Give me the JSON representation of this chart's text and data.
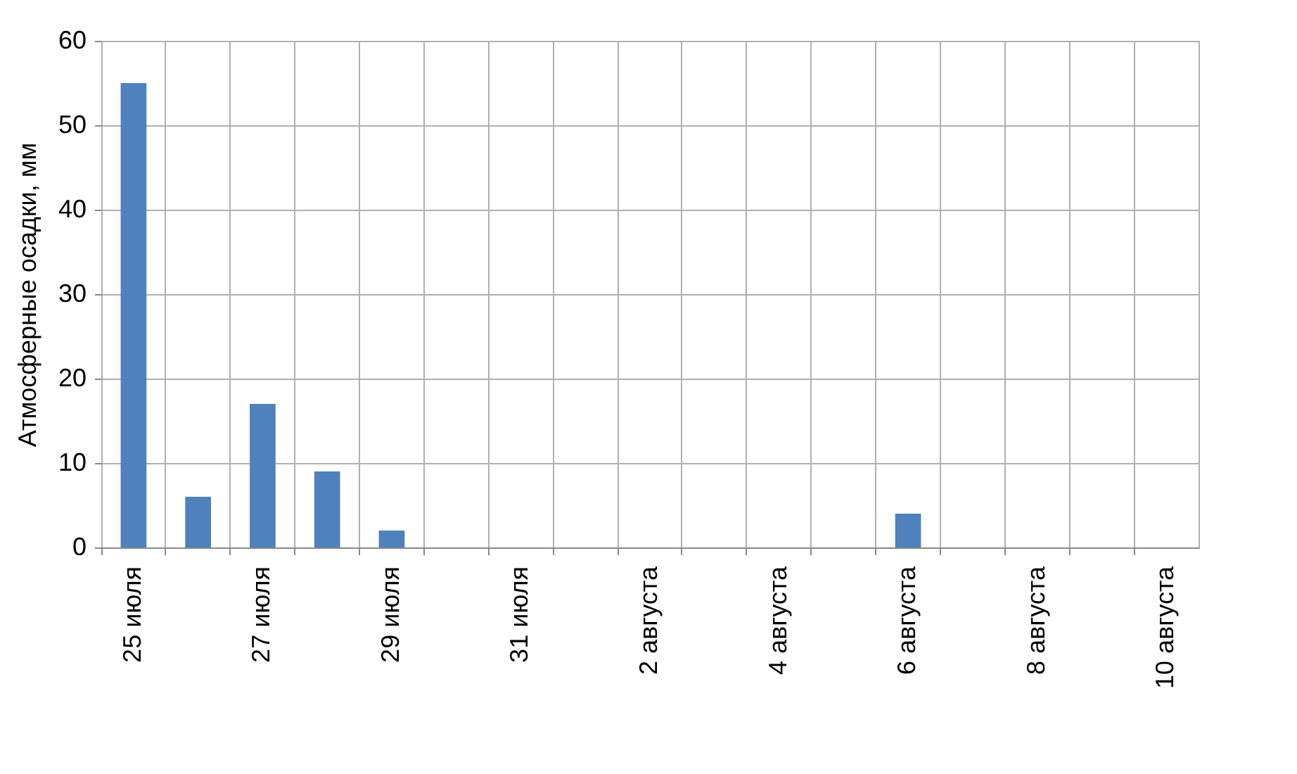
{
  "chart_data": {
    "type": "bar",
    "ylabel": "Атмосферные осадки, мм",
    "categories": [
      "25 июля",
      null,
      "27 июля",
      null,
      "29 июля",
      null,
      "31 июля",
      null,
      "2 августа",
      null,
      "4 августа",
      null,
      "6 августа",
      null,
      "8 августа",
      null,
      "10 августа"
    ],
    "values": [
      55,
      6,
      17,
      9,
      2,
      0,
      0,
      0,
      0,
      0,
      0,
      0,
      4,
      0,
      0,
      0,
      0
    ],
    "color": "#4f81bd",
    "ylim": [
      0,
      60
    ],
    "yticks": [
      0,
      10,
      20,
      30,
      40,
      50,
      60
    ],
    "grid": true
  }
}
